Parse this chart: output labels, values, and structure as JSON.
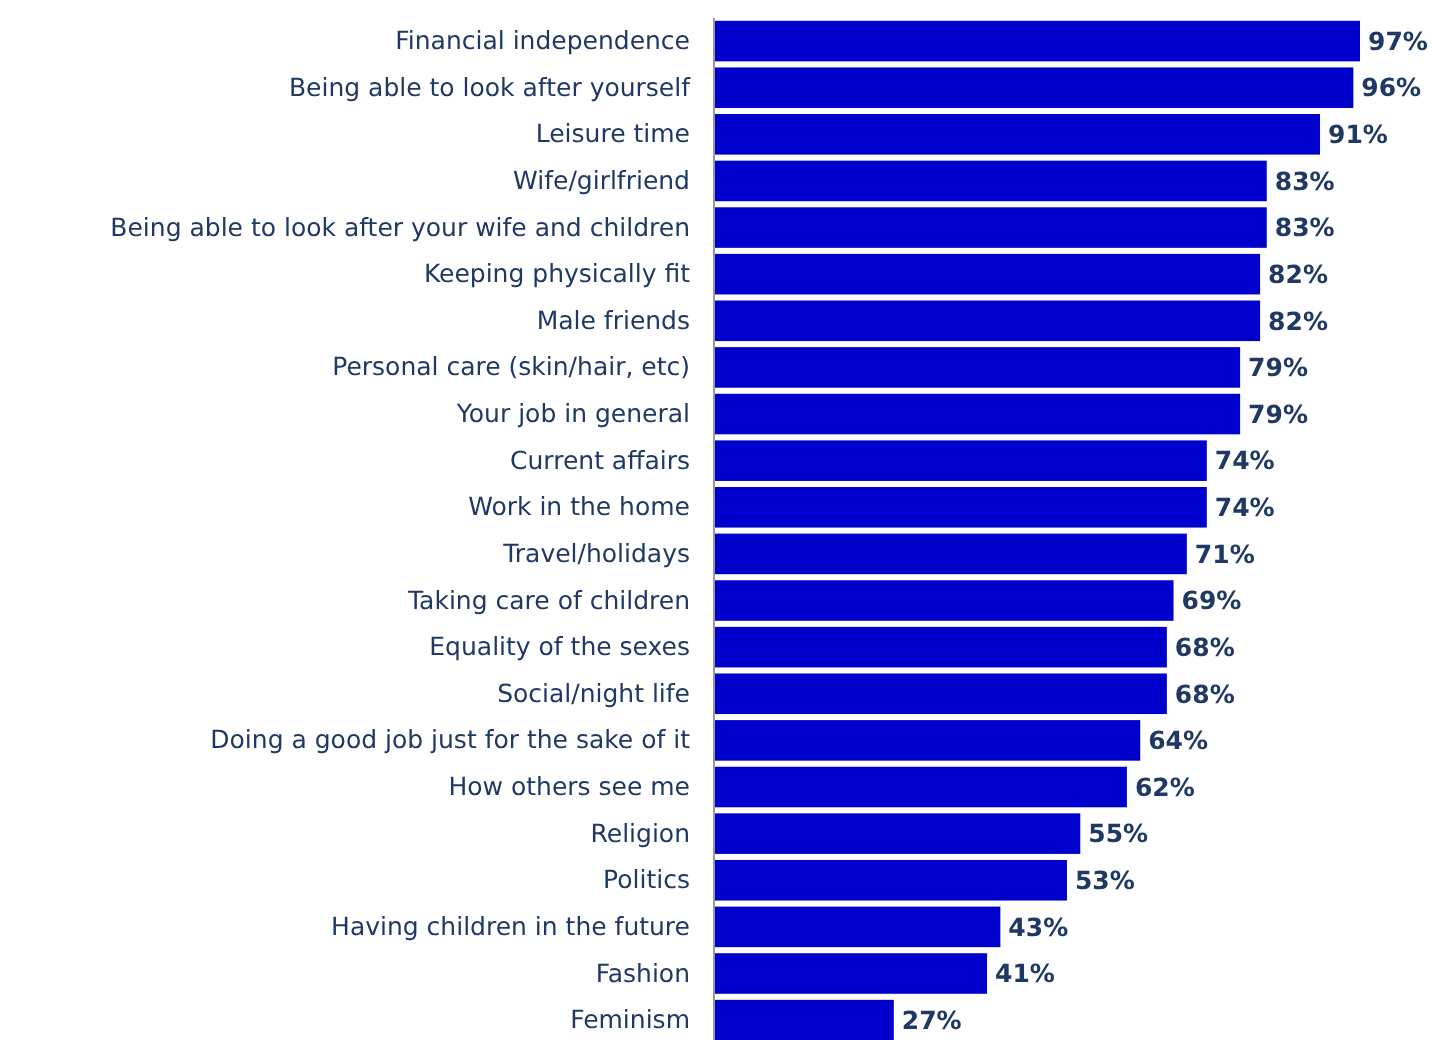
{
  "chart_data": {
    "type": "bar",
    "orientation": "horizontal",
    "categories": [
      "Financial independence",
      "Being able to look after yourself",
      "Leisure time",
      "Wife/girlfriend",
      "Being able to look after your wife and children",
      "Keeping physically fit",
      "Male friends",
      "Personal care (skin/hair, etc)",
      "Your job in general",
      "Current affairs",
      "Work in the home",
      "Travel/holidays",
      "Taking care of children",
      "Equality of the sexes",
      "Social/night life",
      "Doing a good job just for the sake of it",
      "How others see me",
      "Religion",
      "Politics",
      "Having children in the future",
      "Fashion",
      "Feminism"
    ],
    "values": [
      97,
      96,
      91,
      83,
      83,
      82,
      82,
      79,
      79,
      74,
      74,
      71,
      69,
      68,
      68,
      64,
      62,
      55,
      53,
      43,
      41,
      27
    ],
    "value_labels": [
      "97%",
      "96%",
      "91%",
      "83%",
      "83%",
      "82%",
      "82%",
      "79%",
      "79%",
      "74%",
      "74%",
      "71%",
      "69%",
      "68%",
      "68%",
      "64%",
      "62%",
      "55%",
      "53%",
      "43%",
      "41%",
      "27%"
    ],
    "color": "#0000cc",
    "tick_labels": "y"
  }
}
